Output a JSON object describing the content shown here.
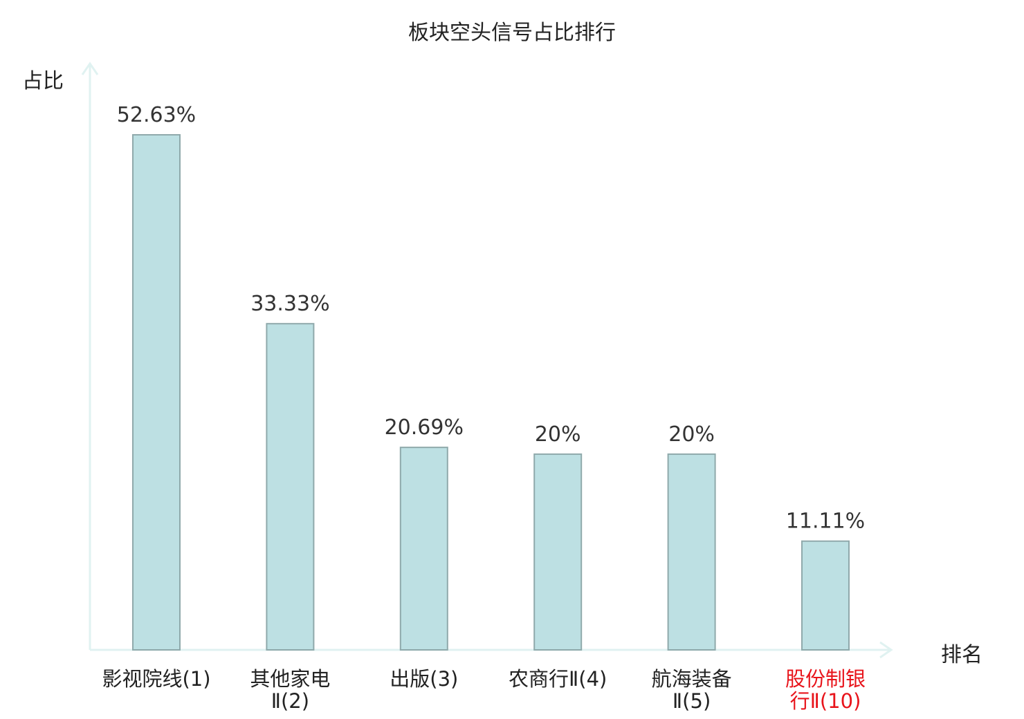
{
  "chart_data": {
    "type": "bar",
    "title": "板块空头信号占比排行",
    "ylabel": "占比",
    "xlabel": "排名",
    "categories": [
      {
        "line1": "影视院线(1)",
        "line2": "",
        "highlight": false
      },
      {
        "line1": "其他家电",
        "line2": "Ⅱ(2)",
        "highlight": false
      },
      {
        "line1": "出版(3)",
        "line2": "",
        "highlight": false
      },
      {
        "line1": "农商行Ⅱ(4)",
        "line2": "",
        "highlight": false
      },
      {
        "line1": "航海装备",
        "line2": "Ⅱ(5)",
        "highlight": false
      },
      {
        "line1": "股份制银",
        "line2": "行Ⅱ(10)",
        "highlight": true
      }
    ],
    "values": [
      52.63,
      33.33,
      20.69,
      20,
      20,
      11.11
    ],
    "value_labels": [
      "52.63%",
      "33.33%",
      "20.69%",
      "20%",
      "20%",
      "11.11%"
    ],
    "ylim": [
      0,
      52.63
    ],
    "grid": false,
    "legend": "none"
  },
  "colors": {
    "bar_fill": "#bde0e3",
    "bar_stroke": "#8fa9ab",
    "axis": "#e0f2f1",
    "highlight_text": "#e8141b",
    "text": "#222222"
  }
}
